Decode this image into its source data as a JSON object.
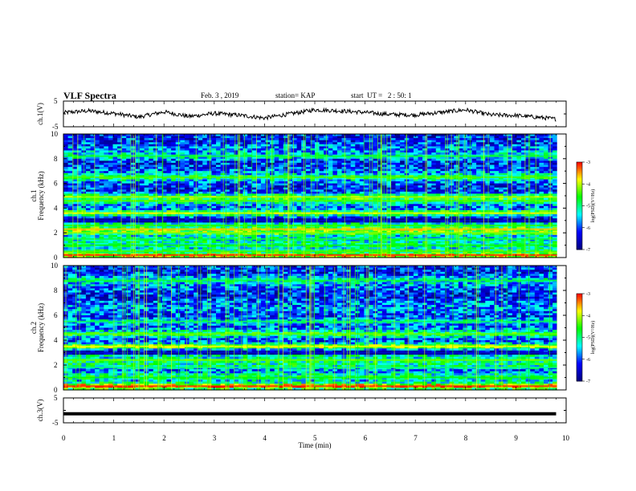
{
  "header": {
    "title": "VLF Spectra",
    "date": "Feb. 3  , 2019",
    "station": "station= KAP",
    "start": "start  UT =   2 : 50: 1"
  },
  "chart_data": [
    {
      "type": "line",
      "panel": "ch1-waveform",
      "ylabel": "ch.1(V)",
      "ylim": [
        -5,
        5
      ],
      "yticks": [
        "5",
        "-5"
      ],
      "x": [
        0,
        0.5,
        1,
        1.5,
        2,
        2.5,
        3,
        3.5,
        4,
        4.5,
        5,
        5.5,
        6,
        6.5,
        7,
        7.5,
        8,
        8.5,
        9,
        9.5,
        9.8
      ],
      "y": [
        0.5,
        1.2,
        0.2,
        -1.2,
        0.8,
        -1.0,
        0.2,
        -0.5,
        -1.6,
        0.0,
        1.6,
        1.2,
        0.6,
        -0.2,
        -0.4,
        0.6,
        1.6,
        -0.4,
        -0.6,
        -1.4,
        -2.0
      ]
    },
    {
      "type": "heatmap",
      "panel": "ch1-spectrogram",
      "ylabel": "ch.1\nFrequency  (kHz)",
      "ylim": [
        0,
        10
      ],
      "yticks": [
        "0",
        "2",
        "4",
        "6",
        "8",
        "10"
      ],
      "colorbar": {
        "label": "log(PSD)(V²/Hz)",
        "ticks": [
          "-3",
          "-4",
          "-5",
          "-6",
          "-7"
        ],
        "range": [
          -7,
          -3
        ]
      },
      "bands_khz": [
        {
          "f": 0.2,
          "level": -3.5
        },
        {
          "f": 0.5,
          "level": -4.8
        },
        {
          "f": 1.0,
          "level": -5.0
        },
        {
          "f": 1.5,
          "level": -5.2
        },
        {
          "f": 2.0,
          "level": -4.6
        },
        {
          "f": 2.3,
          "level": -4.0
        },
        {
          "f": 2.6,
          "level": -4.9
        },
        {
          "f": 3.0,
          "level": -6.9
        },
        {
          "f": 3.6,
          "level": -4.3
        },
        {
          "f": 4.6,
          "level": -4.8
        },
        {
          "f": 4.9,
          "level": -4.5
        },
        {
          "f": 6.5,
          "level": -4.8
        },
        {
          "f": 8.2,
          "level": -5.2
        }
      ]
    },
    {
      "type": "heatmap",
      "panel": "ch2-spectrogram",
      "ylabel": "ch.2\nFrequency  (kHz)",
      "ylim": [
        0,
        10
      ],
      "yticks": [
        "0",
        "2",
        "4",
        "6",
        "8",
        "10"
      ],
      "colorbar": {
        "label": "log(PSD)(V²/Hz)",
        "ticks": [
          "-3",
          "-4",
          "-5",
          "-6",
          "-7"
        ],
        "range": [
          -7,
          -3
        ]
      },
      "bands_khz": [
        {
          "f": 0.3,
          "level": -3.5
        },
        {
          "f": 1.0,
          "level": -5.0
        },
        {
          "f": 1.8,
          "level": -5.4
        },
        {
          "f": 2.4,
          "level": -4.7
        },
        {
          "f": 3.0,
          "level": -6.9
        },
        {
          "f": 3.5,
          "level": -4.2
        },
        {
          "f": 4.5,
          "level": -4.7
        },
        {
          "f": 5.5,
          "level": -5.3
        },
        {
          "f": 8.8,
          "level": -5.2
        }
      ]
    },
    {
      "type": "line",
      "panel": "ch3-waveform",
      "ylabel": "ch.3(V)",
      "ylim": [
        -5,
        5
      ],
      "yticks": [
        "5",
        "-5"
      ],
      "x": [
        0,
        9.8
      ],
      "y": [
        -1.4,
        -1.4
      ]
    }
  ],
  "xaxis": {
    "label": "Time  (min)",
    "ticks": [
      "0",
      "1",
      "2",
      "3",
      "4",
      "5",
      "6",
      "7",
      "8",
      "9",
      "10"
    ],
    "range": [
      0,
      10
    ]
  },
  "colors": {
    "background": "#ffffff",
    "axis": "#000000",
    "colormap": [
      "#00007f",
      "#0000ff",
      "#00ffff",
      "#00ff00",
      "#ffff00",
      "#ff0000"
    ]
  }
}
